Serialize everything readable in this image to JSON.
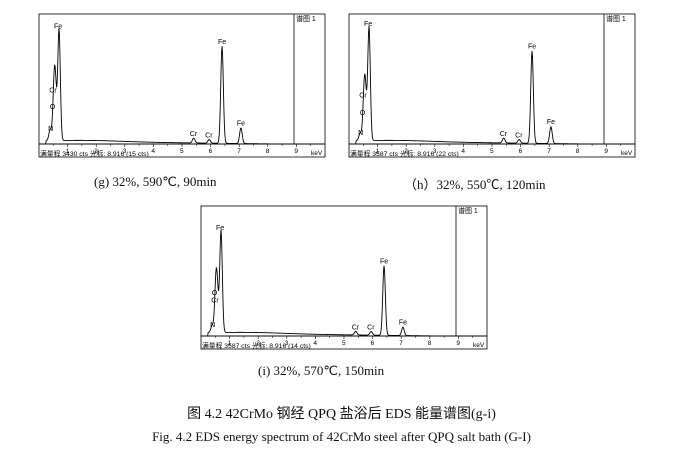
{
  "chart_data": [
    {
      "type": "line",
      "panel": "g",
      "legend_label": "谱图 1",
      "xunit": "keV",
      "xlim": [
        0,
        10
      ],
      "xticks": [
        "1",
        "2",
        "3",
        "4",
        "5",
        "6",
        "7",
        "8",
        "9"
      ],
      "info": "满量程 3430 cts 光标: 8.916  (15 cts)",
      "peaks": [
        {
          "label": "N",
          "x": 0.39,
          "y": 0.09
        },
        {
          "label": "O",
          "x": 0.52,
          "y": 0.31
        },
        {
          "label": "Cr",
          "x": 0.57,
          "y": 0.42
        },
        {
          "label": "Fe",
          "x": 0.7,
          "y": 0.93
        },
        {
          "label": "Cr",
          "x": 5.41,
          "y": 0.04
        },
        {
          "label": "Cr",
          "x": 5.95,
          "y": 0.03
        },
        {
          "label": "Fe",
          "x": 6.4,
          "y": 0.81
        },
        {
          "label": "Fe",
          "x": 7.06,
          "y": 0.13
        }
      ],
      "caption": "(g) 32%,  590℃,  90min"
    },
    {
      "type": "line",
      "panel": "h",
      "legend_label": "谱图 1",
      "xunit": "keV",
      "xlim": [
        0,
        10
      ],
      "xticks": [
        "1",
        "2",
        "3",
        "4",
        "5",
        "6",
        "7",
        "8",
        "9"
      ],
      "info": "满量程 3587 cts 光标: 8.916  (22 cts)",
      "peaks": [
        {
          "label": "N",
          "x": 0.39,
          "y": 0.06
        },
        {
          "label": "O",
          "x": 0.52,
          "y": 0.26
        },
        {
          "label": "Cr",
          "x": 0.57,
          "y": 0.38
        },
        {
          "label": "Fe",
          "x": 0.7,
          "y": 0.95
        },
        {
          "label": "Cr",
          "x": 5.41,
          "y": 0.04
        },
        {
          "label": "Cr",
          "x": 5.95,
          "y": 0.03
        },
        {
          "label": "Fe",
          "x": 6.4,
          "y": 0.77
        },
        {
          "label": "Fe",
          "x": 7.06,
          "y": 0.14
        }
      ],
      "caption": "（h）32%,  550℃,  120min"
    },
    {
      "type": "line",
      "panel": "i",
      "legend_label": "谱图 1",
      "xunit": "keV",
      "xlim": [
        0,
        10
      ],
      "xticks": [
        "1",
        "2",
        "3",
        "4",
        "5",
        "6",
        "7",
        "8",
        "9"
      ],
      "info": "满量程 3587 cts 光标: 8.916  (14 cts)",
      "peaks": [
        {
          "label": "N",
          "x": 0.39,
          "y": 0.06
        },
        {
          "label": "O",
          "x": 0.52,
          "y": 0.36
        },
        {
          "label": "Cr",
          "x": 0.57,
          "y": 0.27
        },
        {
          "label": "Fe",
          "x": 0.7,
          "y": 0.85
        },
        {
          "label": "Cr",
          "x": 5.41,
          "y": 0.03
        },
        {
          "label": "Cr",
          "x": 5.95,
          "y": 0.03
        },
        {
          "label": "Fe",
          "x": 6.4,
          "y": 0.58
        },
        {
          "label": "Fe",
          "x": 7.06,
          "y": 0.07
        }
      ],
      "caption": "(i)   32%,  570℃,  150min"
    }
  ],
  "figure": {
    "title_cn": "图 4.2 42CrMo 钢经 QPQ 盐浴后 EDS 能量谱图(g-i)",
    "title_en": "Fig. 4.2 EDS energy spectrum of 42CrMo steel after QPQ salt bath (G-I)"
  }
}
